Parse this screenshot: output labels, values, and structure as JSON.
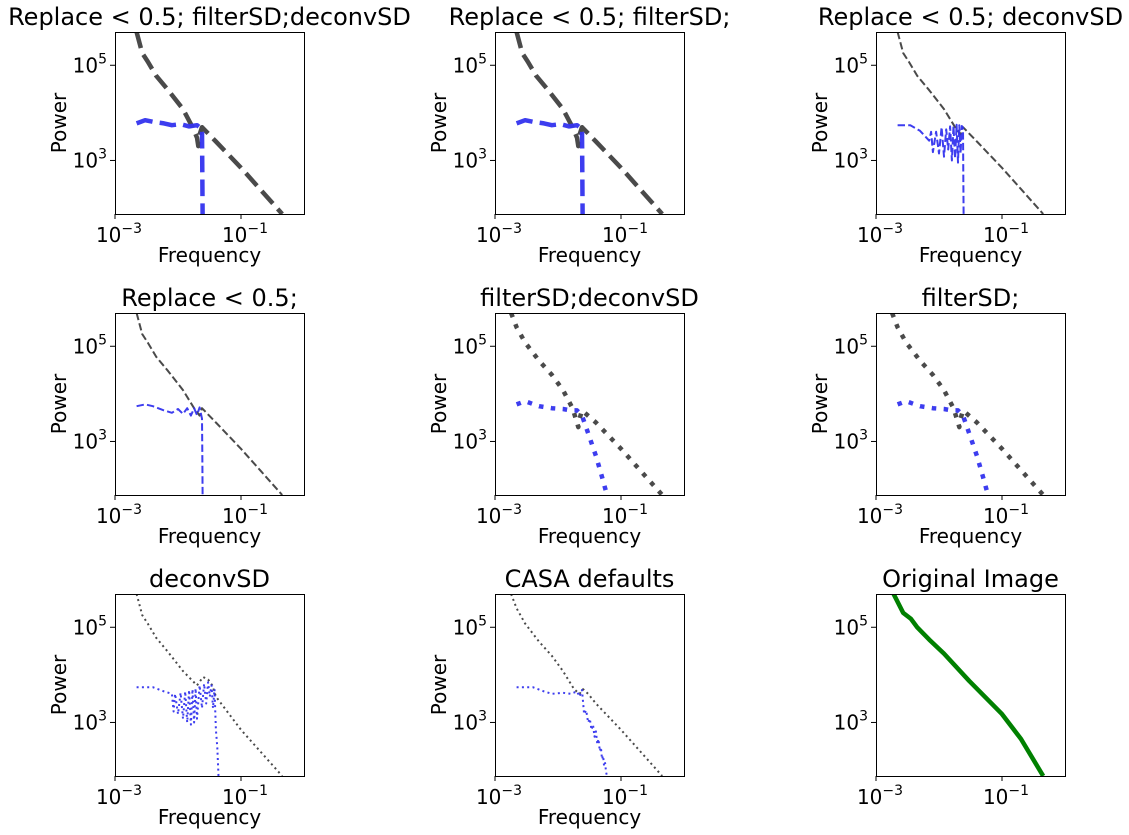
{
  "chart_data": [
    {
      "type": "line",
      "title": "Replace < 0.5; filterSD;deconvSD",
      "xlabel": "Frequency",
      "ylabel": "Power",
      "xscale": "log",
      "yscale": "log",
      "xlim": [
        0.001,
        1.0
      ],
      "ylim": [
        75,
        500000
      ],
      "xticks": [
        {
          "base": "10",
          "exp": "−3",
          "value": 0.001
        },
        {
          "base": "10",
          "exp": "−1",
          "value": 0.1
        }
      ],
      "yticks": [
        {
          "base": "10",
          "exp": "3",
          "value": 1000
        },
        {
          "base": "10",
          "exp": "5",
          "value": 100000
        }
      ],
      "series": [
        {
          "color": "#404040",
          "linestyle": "dashed",
          "linewidth": 4.5,
          "x": [
            0.0022,
            0.0027,
            0.0033,
            0.0045,
            0.007,
            0.012,
            0.017,
            0.02,
            0.021,
            0.022,
            0.024,
            0.04,
            0.1,
            0.2,
            0.45
          ],
          "y": [
            500000,
            180000,
            120000,
            60000,
            30000,
            12000,
            5000,
            3000,
            2000,
            3500,
            5000,
            2500,
            700,
            250,
            75
          ]
        },
        {
          "color": "#3333ee",
          "linestyle": "dashed",
          "linewidth": 4.5,
          "x": [
            0.0022,
            0.003,
            0.004,
            0.006,
            0.008,
            0.011,
            0.015,
            0.02,
            0.022,
            0.024,
            0.0243,
            0.0246
          ],
          "y": [
            6000,
            7000,
            6500,
            6000,
            5500,
            5800,
            5200,
            5500,
            5000,
            4800,
            600,
            75
          ]
        }
      ]
    },
    {
      "type": "line",
      "title": "Replace < 0.5; filterSD;",
      "xlabel": "Frequency",
      "ylabel": "Power",
      "xscale": "log",
      "yscale": "log",
      "xlim": [
        0.001,
        1.0
      ],
      "ylim": [
        75,
        500000
      ],
      "xticks": [
        {
          "base": "10",
          "exp": "−3",
          "value": 0.001
        },
        {
          "base": "10",
          "exp": "−1",
          "value": 0.1
        }
      ],
      "yticks": [
        {
          "base": "10",
          "exp": "3",
          "value": 1000
        },
        {
          "base": "10",
          "exp": "5",
          "value": 100000
        }
      ],
      "series": [
        {
          "color": "#404040",
          "linestyle": "dashed",
          "linewidth": 4.5,
          "x": [
            0.0022,
            0.0027,
            0.0033,
            0.0045,
            0.007,
            0.012,
            0.017,
            0.02,
            0.021,
            0.022,
            0.024,
            0.04,
            0.1,
            0.2,
            0.45
          ],
          "y": [
            500000,
            180000,
            120000,
            60000,
            30000,
            12000,
            5000,
            3000,
            2000,
            3500,
            5000,
            2500,
            700,
            250,
            75
          ]
        },
        {
          "color": "#3333ee",
          "linestyle": "dashed",
          "linewidth": 4.5,
          "x": [
            0.0022,
            0.003,
            0.004,
            0.006,
            0.008,
            0.011,
            0.015,
            0.02,
            0.022,
            0.024,
            0.0243,
            0.0246
          ],
          "y": [
            6000,
            7000,
            6500,
            6000,
            5500,
            5800,
            5200,
            5500,
            5000,
            4800,
            600,
            75
          ]
        }
      ]
    },
    {
      "type": "line",
      "title": "Replace < 0.5; deconvSD",
      "xlabel": "Frequency",
      "ylabel": "Power",
      "xscale": "log",
      "yscale": "log",
      "xlim": [
        0.001,
        1.0
      ],
      "ylim": [
        75,
        500000
      ],
      "xticks": [
        {
          "base": "10",
          "exp": "−3",
          "value": 0.001
        },
        {
          "base": "10",
          "exp": "−1",
          "value": 0.1
        }
      ],
      "yticks": [
        {
          "base": "10",
          "exp": "3",
          "value": 1000
        },
        {
          "base": "10",
          "exp": "5",
          "value": 100000
        }
      ],
      "series": [
        {
          "color": "#404040",
          "linestyle": "dashed",
          "linewidth": 2,
          "x": [
            0.0022,
            0.0027,
            0.0033,
            0.0045,
            0.007,
            0.012,
            0.018,
            0.022,
            0.024,
            0.04,
            0.1,
            0.2,
            0.45
          ],
          "y": [
            500000,
            180000,
            120000,
            60000,
            30000,
            12000,
            5000,
            3500,
            5000,
            2500,
            700,
            250,
            75
          ]
        },
        {
          "color": "#3333ee",
          "linestyle": "dashed",
          "linewidth": 2,
          "x": [
            0.0022,
            0.0035,
            0.005,
            0.007,
            0.0075,
            0.008,
            0.009,
            0.01,
            0.011,
            0.012,
            0.013,
            0.014,
            0.015,
            0.016,
            0.017,
            0.018,
            0.019,
            0.02,
            0.021,
            0.022,
            0.023,
            0.024,
            0.0243,
            0.0246
          ],
          "y": [
            5500,
            5500,
            4200,
            2600,
            4000,
            1500,
            4000,
            1400,
            5000,
            1200,
            4500,
            1700,
            5200,
            1000,
            5300,
            1100,
            5600,
            900,
            5500,
            1400,
            5300,
            4800,
            500,
            75
          ]
        }
      ]
    },
    {
      "type": "line",
      "title": "Replace < 0.5;",
      "xlabel": "Frequency",
      "ylabel": "Power",
      "xscale": "log",
      "yscale": "log",
      "xlim": [
        0.001,
        1.0
      ],
      "ylim": [
        75,
        500000
      ],
      "xticks": [
        {
          "base": "10",
          "exp": "−3",
          "value": 0.001
        },
        {
          "base": "10",
          "exp": "−1",
          "value": 0.1
        }
      ],
      "yticks": [
        {
          "base": "10",
          "exp": "3",
          "value": 1000
        },
        {
          "base": "10",
          "exp": "5",
          "value": 100000
        }
      ],
      "series": [
        {
          "color": "#404040",
          "linestyle": "dashed",
          "linewidth": 2,
          "x": [
            0.0022,
            0.0027,
            0.0033,
            0.0045,
            0.007,
            0.012,
            0.018,
            0.022,
            0.024,
            0.04,
            0.1,
            0.2,
            0.45
          ],
          "y": [
            500000,
            180000,
            120000,
            60000,
            30000,
            12000,
            5000,
            3500,
            5000,
            2500,
            700,
            250,
            75
          ]
        },
        {
          "color": "#3333ee",
          "linestyle": "dashed",
          "linewidth": 2,
          "x": [
            0.0022,
            0.003,
            0.004,
            0.006,
            0.008,
            0.01,
            0.012,
            0.014,
            0.016,
            0.018,
            0.02,
            0.022,
            0.024,
            0.0243,
            0.0246
          ],
          "y": [
            5500,
            6000,
            5500,
            4500,
            4000,
            4800,
            3800,
            5000,
            3500,
            5000,
            3600,
            5200,
            3000,
            600,
            75
          ]
        }
      ]
    },
    {
      "type": "line",
      "title": "filterSD;deconvSD",
      "xlabel": "Frequency",
      "ylabel": "Power",
      "xscale": "log",
      "yscale": "log",
      "xlim": [
        0.001,
        1.0
      ],
      "ylim": [
        75,
        500000
      ],
      "xticks": [
        {
          "base": "10",
          "exp": "−3",
          "value": 0.001
        },
        {
          "base": "10",
          "exp": "−1",
          "value": 0.1
        }
      ],
      "yticks": [
        {
          "base": "10",
          "exp": "3",
          "value": 1000
        },
        {
          "base": "10",
          "exp": "5",
          "value": 100000
        }
      ],
      "series": [
        {
          "color": "#404040",
          "linestyle": "dotted",
          "linewidth": 4.5,
          "x": [
            0.0018,
            0.0022,
            0.003,
            0.005,
            0.008,
            0.012,
            0.017,
            0.02,
            0.021,
            0.022,
            0.024,
            0.04,
            0.1,
            0.2,
            0.45
          ],
          "y": [
            500000,
            250000,
            120000,
            50000,
            25000,
            12000,
            5000,
            2500,
            2000,
            3000,
            4500,
            2500,
            700,
            250,
            75
          ]
        },
        {
          "color": "#3333ee",
          "linestyle": "dotted",
          "linewidth": 4.5,
          "x": [
            0.0022,
            0.003,
            0.005,
            0.008,
            0.012,
            0.016,
            0.02,
            0.024,
            0.03,
            0.04,
            0.05,
            0.06
          ],
          "y": [
            6000,
            7000,
            5500,
            5000,
            4800,
            4500,
            4500,
            3500,
            1500,
            500,
            180,
            75
          ]
        }
      ]
    },
    {
      "type": "line",
      "title": "filterSD;",
      "xlabel": "Frequency",
      "ylabel": "Power",
      "xscale": "log",
      "yscale": "log",
      "xlim": [
        0.001,
        1.0
      ],
      "ylim": [
        75,
        500000
      ],
      "xticks": [
        {
          "base": "10",
          "exp": "−3",
          "value": 0.001
        },
        {
          "base": "10",
          "exp": "−1",
          "value": 0.1
        }
      ],
      "yticks": [
        {
          "base": "10",
          "exp": "3",
          "value": 1000
        },
        {
          "base": "10",
          "exp": "5",
          "value": 100000
        }
      ],
      "series": [
        {
          "color": "#404040",
          "linestyle": "dotted",
          "linewidth": 4.5,
          "x": [
            0.0018,
            0.0022,
            0.003,
            0.005,
            0.008,
            0.012,
            0.017,
            0.02,
            0.021,
            0.022,
            0.024,
            0.04,
            0.1,
            0.2,
            0.45
          ],
          "y": [
            500000,
            250000,
            120000,
            50000,
            25000,
            12000,
            5000,
            2500,
            2000,
            3000,
            4500,
            2500,
            700,
            250,
            75
          ]
        },
        {
          "color": "#3333ee",
          "linestyle": "dotted",
          "linewidth": 4.5,
          "x": [
            0.0022,
            0.003,
            0.005,
            0.008,
            0.012,
            0.016,
            0.02,
            0.024,
            0.03,
            0.04,
            0.05,
            0.06
          ],
          "y": [
            6000,
            7000,
            5500,
            5000,
            4800,
            4500,
            4500,
            3500,
            1500,
            500,
            180,
            75
          ]
        }
      ]
    },
    {
      "type": "line",
      "title": "deconvSD",
      "xlabel": "Frequency",
      "ylabel": "Power",
      "xscale": "log",
      "yscale": "log",
      "xlim": [
        0.001,
        1.0
      ],
      "ylim": [
        75,
        500000
      ],
      "xticks": [
        {
          "base": "10",
          "exp": "−3",
          "value": 0.001
        },
        {
          "base": "10",
          "exp": "−1",
          "value": 0.1
        }
      ],
      "yticks": [
        {
          "base": "10",
          "exp": "3",
          "value": 1000
        },
        {
          "base": "10",
          "exp": "5",
          "value": 100000
        }
      ],
      "series": [
        {
          "color": "#404040",
          "linestyle": "dotted",
          "linewidth": 2,
          "x": [
            0.0022,
            0.0027,
            0.0033,
            0.0045,
            0.007,
            0.012,
            0.02,
            0.025,
            0.03,
            0.035,
            0.04,
            0.1,
            0.2,
            0.45
          ],
          "y": [
            500000,
            180000,
            120000,
            60000,
            30000,
            12000,
            6000,
            9000,
            8000,
            6000,
            3500,
            700,
            250,
            75
          ]
        },
        {
          "color": "#3333ee",
          "linestyle": "dotted",
          "linewidth": 2,
          "x": [
            0.0022,
            0.004,
            0.006,
            0.008,
            0.0085,
            0.009,
            0.01,
            0.011,
            0.012,
            0.013,
            0.014,
            0.015,
            0.016,
            0.017,
            0.018,
            0.019,
            0.02,
            0.022,
            0.024,
            0.026,
            0.028,
            0.03,
            0.032,
            0.034,
            0.036,
            0.038,
            0.04,
            0.042,
            0.044
          ],
          "y": [
            5500,
            5500,
            4500,
            4000,
            1700,
            4000,
            1500,
            4200,
            1200,
            4500,
            1000,
            4800,
            900,
            5000,
            1000,
            5200,
            1200,
            6000,
            2000,
            6500,
            2500,
            7000,
            3500,
            6000,
            2000,
            5000,
            700,
            300,
            75
          ]
        }
      ]
    },
    {
      "type": "line",
      "title": "CASA defaults",
      "xlabel": "Frequency",
      "ylabel": "Power",
      "xscale": "log",
      "yscale": "log",
      "xlim": [
        0.001,
        1.0
      ],
      "ylim": [
        75,
        500000
      ],
      "xticks": [
        {
          "base": "10",
          "exp": "−3",
          "value": 0.001
        },
        {
          "base": "10",
          "exp": "−1",
          "value": 0.1
        }
      ],
      "yticks": [
        {
          "base": "10",
          "exp": "3",
          "value": 1000
        },
        {
          "base": "10",
          "exp": "5",
          "value": 100000
        }
      ],
      "series": [
        {
          "color": "#404040",
          "linestyle": "dotted",
          "linewidth": 2,
          "x": [
            0.0018,
            0.0022,
            0.003,
            0.005,
            0.008,
            0.012,
            0.018,
            0.022,
            0.025,
            0.03,
            0.04,
            0.1,
            0.2,
            0.45
          ],
          "y": [
            500000,
            250000,
            120000,
            50000,
            25000,
            12000,
            5000,
            4000,
            5000,
            4000,
            2500,
            700,
            250,
            75
          ]
        },
        {
          "color": "#3333ee",
          "linestyle": "dotted",
          "linewidth": 2,
          "x": [
            0.0022,
            0.004,
            0.006,
            0.008,
            0.012,
            0.016,
            0.02,
            0.022,
            0.024,
            0.026,
            0.028,
            0.03,
            0.032,
            0.034,
            0.036,
            0.038,
            0.04,
            0.042,
            0.044,
            0.046,
            0.048,
            0.05,
            0.052,
            0.054,
            0.056,
            0.058,
            0.06
          ],
          "y": [
            5500,
            5500,
            4500,
            4000,
            4200,
            4000,
            4500,
            3500,
            4800,
            1500,
            1800,
            1000,
            1200,
            700,
            900,
            500,
            650,
            350,
            450,
            250,
            300,
            170,
            200,
            120,
            140,
            90,
            75
          ]
        }
      ]
    },
    {
      "type": "line",
      "title": "Original Image",
      "xlabel": "",
      "ylabel": "",
      "xscale": "log",
      "yscale": "log",
      "xlim": [
        0.001,
        1.0
      ],
      "ylim": [
        75,
        500000
      ],
      "xticks": [
        {
          "base": "10",
          "exp": "−3",
          "value": 0.001
        },
        {
          "base": "10",
          "exp": "−1",
          "value": 0.1
        }
      ],
      "yticks": [
        {
          "base": "10",
          "exp": "3",
          "value": 1000
        },
        {
          "base": "10",
          "exp": "5",
          "value": 100000
        }
      ],
      "series": [
        {
          "color": "#008000",
          "linestyle": "solid",
          "linewidth": 4.5,
          "x": [
            0.0019,
            0.0027,
            0.0036,
            0.0045,
            0.007,
            0.012,
            0.03,
            0.1,
            0.2,
            0.45
          ],
          "y": [
            500000,
            200000,
            150000,
            100000,
            55000,
            28000,
            7500,
            1500,
            450,
            75
          ]
        }
      ]
    }
  ]
}
